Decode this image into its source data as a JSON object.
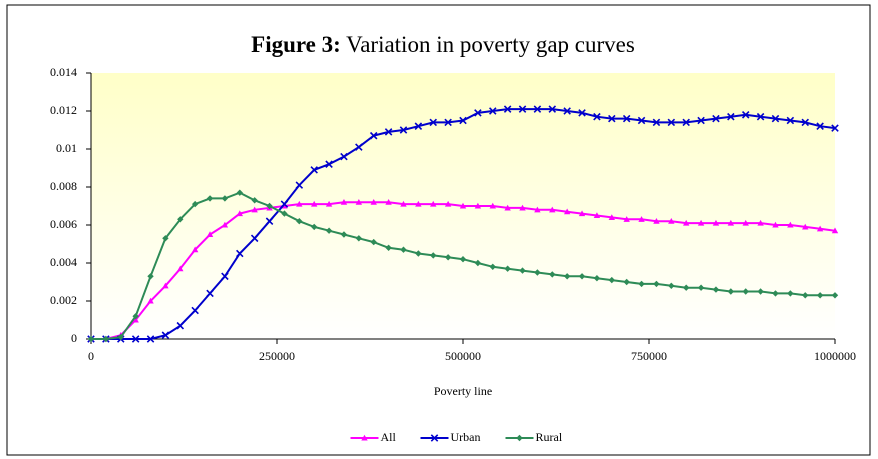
{
  "chart_data": {
    "type": "line",
    "title_prefix": "Figure 3:",
    "title": "Variation in poverty gap curves",
    "x_label": "Poverty line",
    "x": [
      0,
      20000,
      40000,
      60000,
      80000,
      100000,
      120000,
      140000,
      160000,
      180000,
      200000,
      220000,
      240000,
      260000,
      280000,
      300000,
      320000,
      340000,
      360000,
      380000,
      400000,
      420000,
      440000,
      460000,
      480000,
      500000,
      520000,
      540000,
      560000,
      580000,
      600000,
      620000,
      640000,
      660000,
      680000,
      700000,
      720000,
      740000,
      760000,
      780000,
      800000,
      820000,
      840000,
      860000,
      880000,
      900000,
      920000,
      940000,
      960000,
      980000,
      1000000
    ],
    "series": [
      {
        "name": "All",
        "color": "#ff00ff",
        "marker": "triangle",
        "values": [
          0,
          0,
          0.0002,
          0.001,
          0.002,
          0.0028,
          0.0037,
          0.0047,
          0.0055,
          0.006,
          0.0066,
          0.0068,
          0.0069,
          0.007,
          0.0071,
          0.0071,
          0.0071,
          0.0072,
          0.0072,
          0.0072,
          0.0072,
          0.0071,
          0.0071,
          0.0071,
          0.0071,
          0.007,
          0.007,
          0.007,
          0.0069,
          0.0069,
          0.0068,
          0.0068,
          0.0067,
          0.0066,
          0.0065,
          0.0064,
          0.0063,
          0.0063,
          0.0062,
          0.0062,
          0.0061,
          0.0061,
          0.0061,
          0.0061,
          0.0061,
          0.0061,
          0.006,
          0.006,
          0.0059,
          0.0058,
          0.0057
        ]
      },
      {
        "name": "Urban",
        "color": "#0000cc",
        "marker": "cross",
        "values": [
          0,
          0,
          0,
          0,
          0,
          0.0002,
          0.0007,
          0.0015,
          0.0024,
          0.0033,
          0.0045,
          0.0053,
          0.0062,
          0.0071,
          0.0081,
          0.0089,
          0.0092,
          0.0096,
          0.0101,
          0.0107,
          0.0109,
          0.011,
          0.0112,
          0.0114,
          0.0114,
          0.0115,
          0.0119,
          0.012,
          0.0121,
          0.0121,
          0.0121,
          0.0121,
          0.012,
          0.0119,
          0.0117,
          0.0116,
          0.0116,
          0.0115,
          0.0114,
          0.0114,
          0.0114,
          0.0115,
          0.0116,
          0.0117,
          0.0118,
          0.0117,
          0.0116,
          0.0115,
          0.0114,
          0.0112,
          0.0111
        ]
      },
      {
        "name": "Rural",
        "color": "#2e8b57",
        "marker": "diamond",
        "values": [
          0,
          0,
          0.0001,
          0.0012,
          0.0033,
          0.0053,
          0.0063,
          0.0071,
          0.0074,
          0.0074,
          0.0077,
          0.0073,
          0.007,
          0.0066,
          0.0062,
          0.0059,
          0.0057,
          0.0055,
          0.0053,
          0.0051,
          0.0048,
          0.0047,
          0.0045,
          0.0044,
          0.0043,
          0.0042,
          0.004,
          0.0038,
          0.0037,
          0.0036,
          0.0035,
          0.0034,
          0.0033,
          0.0033,
          0.0032,
          0.0031,
          0.003,
          0.0029,
          0.0029,
          0.0028,
          0.0027,
          0.0027,
          0.0026,
          0.0025,
          0.0025,
          0.0025,
          0.0024,
          0.0024,
          0.0023,
          0.0023,
          0.0023
        ]
      }
    ],
    "xlim": [
      0,
      1000000
    ],
    "xticks": [
      0,
      250000,
      500000,
      750000,
      1000000
    ],
    "ylim": [
      0,
      0.014
    ],
    "yticks": [
      0,
      0.002,
      0.004,
      0.006,
      0.008,
      0.01,
      0.012,
      0.014
    ],
    "legend": "bottom"
  }
}
